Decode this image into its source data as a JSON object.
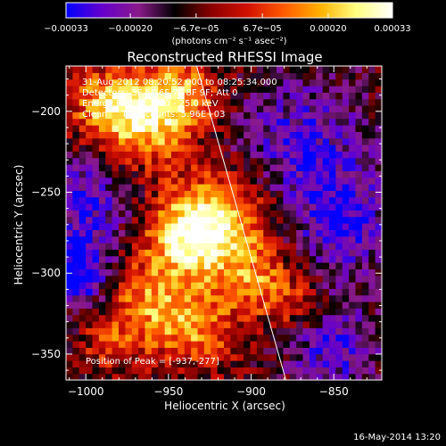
{
  "chart_data": {
    "type": "heatmap",
    "title": "Reconstructed RHESSI Image",
    "xlabel": "Heliocentric X (arcsec)",
    "ylabel": "Heliocentric Y (arcsec)",
    "xlim": [
      -1012,
      -821
    ],
    "ylim": [
      -366,
      -172
    ],
    "x_ticks": [
      -1000,
      -950,
      -900,
      -850
    ],
    "x_tick_labels": [
      "−1000",
      "−950",
      "−900",
      "−850"
    ],
    "y_ticks": [
      -200,
      -250,
      -300,
      -350
    ],
    "y_tick_labels": [
      "−200",
      "−250",
      "−300",
      "−350"
    ],
    "colorbar": {
      "range": [
        -0.00033,
        0.00033
      ],
      "tick_values": [
        -0.00033,
        -0.0002,
        -6.7e-05,
        6.7e-05,
        0.0002,
        0.00033
      ],
      "tick_labels": [
        "−0.00033",
        "−0.00020",
        "−6.7e−05",
        "6.7e−05",
        "0.00020",
        "0.00033"
      ],
      "unit_label": "(photons cm⁻² s⁻¹ asec⁻²)",
      "colors": [
        "#0000ff",
        "#6600cc",
        "#8a1a8a",
        "#000000",
        "#8a0000",
        "#d21000",
        "#ff5a00",
        "#ffb000",
        "#ffff80",
        "#ffffff"
      ]
    },
    "annotations": [
      "31-Aug-2012 08:20:52.000 to 08:25:34.000",
      "Detectors: 3F 5F 6F 7F 8F 9F; Att 0",
      "Energy Range: 12.0 - 25.0 keV",
      "Clean     Total counts: 5.96E+03"
    ],
    "peak_label": "Position of Peak = [-937,-277]",
    "peak_position": [
      -937,
      -277
    ],
    "limb_line": [
      [
        -933,
        -172
      ],
      [
        -879,
        -366
      ]
    ],
    "emission_blobs": [
      {
        "x": -937,
        "y": -277,
        "sigma": 18,
        "amp": 1.0
      },
      {
        "x": -915,
        "y": -265,
        "sigma": 22,
        "amp": 0.75
      },
      {
        "x": -968,
        "y": -205,
        "sigma": 20,
        "amp": 0.85
      },
      {
        "x": -990,
        "y": -195,
        "sigma": 14,
        "amp": 0.55
      },
      {
        "x": -945,
        "y": -190,
        "sigma": 18,
        "amp": 0.7
      },
      {
        "x": -960,
        "y": -320,
        "sigma": 20,
        "amp": 0.7
      },
      {
        "x": -930,
        "y": -335,
        "sigma": 16,
        "amp": 0.55
      },
      {
        "x": -895,
        "y": -305,
        "sigma": 16,
        "amp": 0.6
      },
      {
        "x": -870,
        "y": -320,
        "sigma": 12,
        "amp": 0.35
      },
      {
        "x": -985,
        "y": -345,
        "sigma": 12,
        "amp": 0.35
      }
    ],
    "negative_blobs": [
      {
        "x": -1005,
        "y": -300,
        "sigma": 14,
        "amp": -0.9
      },
      {
        "x": -1000,
        "y": -255,
        "sigma": 20,
        "amp": -0.6
      },
      {
        "x": -870,
        "y": -220,
        "sigma": 30,
        "amp": -0.55
      },
      {
        "x": -845,
        "y": -270,
        "sigma": 22,
        "amp": -0.6
      },
      {
        "x": -850,
        "y": -345,
        "sigma": 20,
        "amp": -0.55
      }
    ],
    "grid": false
  },
  "footer": {
    "date": "16-May-2014 13:20"
  }
}
